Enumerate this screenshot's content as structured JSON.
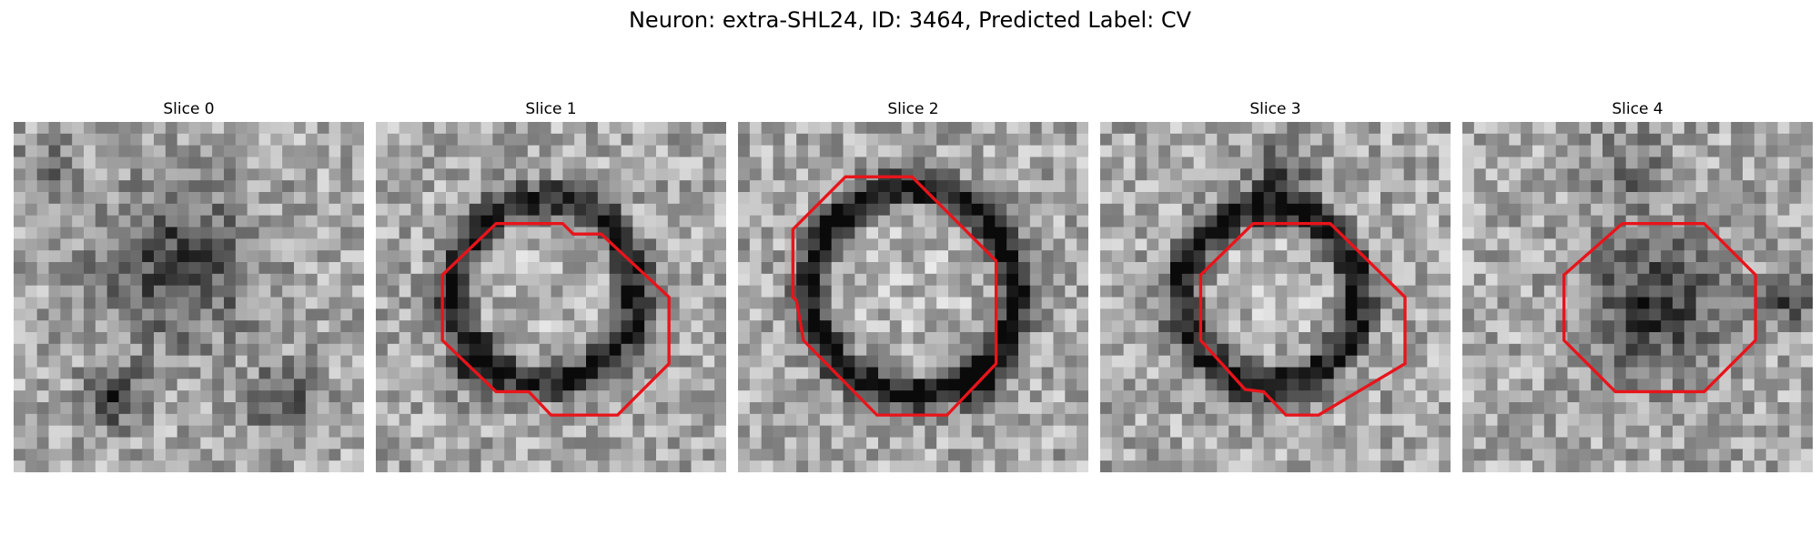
{
  "figure": {
    "title": "Neuron: extra-SHL24, ID: 3464, Predicted Label: CV",
    "colormap": "gray",
    "grid_cells": 30,
    "outline_color": "#e8141b"
  },
  "panels": [
    {
      "title": "Slice 0",
      "blobs": [
        {
          "cx": 14,
          "cy": 12,
          "r": 6.5,
          "depth": 0.4,
          "ring": false
        },
        {
          "cx": 8.5,
          "cy": 23.5,
          "r": 2.4,
          "depth": 0.5,
          "ring": false
        },
        {
          "cx": 23,
          "cy": 24,
          "r": 3.0,
          "depth": 0.3,
          "ring": false
        },
        {
          "cx": 3,
          "cy": 4,
          "r": 2.5,
          "depth": 0.22,
          "ring": false
        }
      ],
      "outline": []
    },
    {
      "title": "Slice 1",
      "blobs": [
        {
          "cx": 14.5,
          "cy": 14.5,
          "r": 7.8,
          "depth": 0.55,
          "ring": true
        },
        {
          "cx": 8,
          "cy": 21,
          "r": 2.2,
          "depth": 0.3,
          "ring": false
        }
      ],
      "outline": [
        [
          10.3,
          8.7
        ],
        [
          16.0,
          8.7
        ],
        [
          16.9,
          9.6
        ],
        [
          19.3,
          9.6
        ],
        [
          25.1,
          15.0
        ],
        [
          25.1,
          20.7
        ],
        [
          20.7,
          25.1
        ],
        [
          15.0,
          25.1
        ],
        [
          13.1,
          23.1
        ],
        [
          10.3,
          23.1
        ],
        [
          5.7,
          18.7
        ],
        [
          5.7,
          13.1
        ]
      ]
    },
    {
      "title": "Slice 2",
      "blobs": [
        {
          "cx": 15,
          "cy": 14.5,
          "r": 8.8,
          "depth": 0.6,
          "ring": true
        },
        {
          "cx": 21,
          "cy": 22,
          "r": 2.0,
          "depth": 0.45,
          "ring": false
        }
      ],
      "outline": [
        [
          9.2,
          4.7
        ],
        [
          14.9,
          4.7
        ],
        [
          22.1,
          11.9
        ],
        [
          22.1,
          20.7
        ],
        [
          17.9,
          25.1
        ],
        [
          11.9,
          25.1
        ],
        [
          5.6,
          18.7
        ],
        [
          5.0,
          15.3
        ],
        [
          4.7,
          15.0
        ],
        [
          4.7,
          9.2
        ]
      ]
    },
    {
      "title": "Slice 3",
      "blobs": [
        {
          "cx": 14.5,
          "cy": 15,
          "r": 7.5,
          "depth": 0.6,
          "ring": true
        },
        {
          "cx": 15.5,
          "cy": 4.5,
          "r": 2.6,
          "depth": 0.35,
          "ring": false
        }
      ],
      "outline": [
        [
          13.1,
          8.7
        ],
        [
          19.7,
          8.7
        ],
        [
          26.1,
          15.0
        ],
        [
          26.1,
          20.7
        ],
        [
          18.7,
          25.1
        ],
        [
          15.9,
          25.1
        ],
        [
          14.0,
          23.1
        ],
        [
          12.4,
          22.9
        ],
        [
          8.6,
          18.7
        ],
        [
          8.6,
          13.1
        ]
      ]
    },
    {
      "title": "Slice 4",
      "blobs": [
        {
          "cx": 16.5,
          "cy": 15.5,
          "r": 5.8,
          "depth": 0.45,
          "ring": false
        },
        {
          "cx": 28,
          "cy": 15.5,
          "r": 2.2,
          "depth": 0.35,
          "ring": false
        },
        {
          "cx": 14,
          "cy": 4,
          "r": 3.5,
          "depth": 0.2,
          "ring": false
        }
      ],
      "outline": [
        [
          13.7,
          8.7
        ],
        [
          20.7,
          8.7
        ],
        [
          25.1,
          13.1
        ],
        [
          25.1,
          18.7
        ],
        [
          20.7,
          23.1
        ],
        [
          13.1,
          23.1
        ],
        [
          8.7,
          18.7
        ],
        [
          8.7,
          13.1
        ]
      ]
    }
  ]
}
